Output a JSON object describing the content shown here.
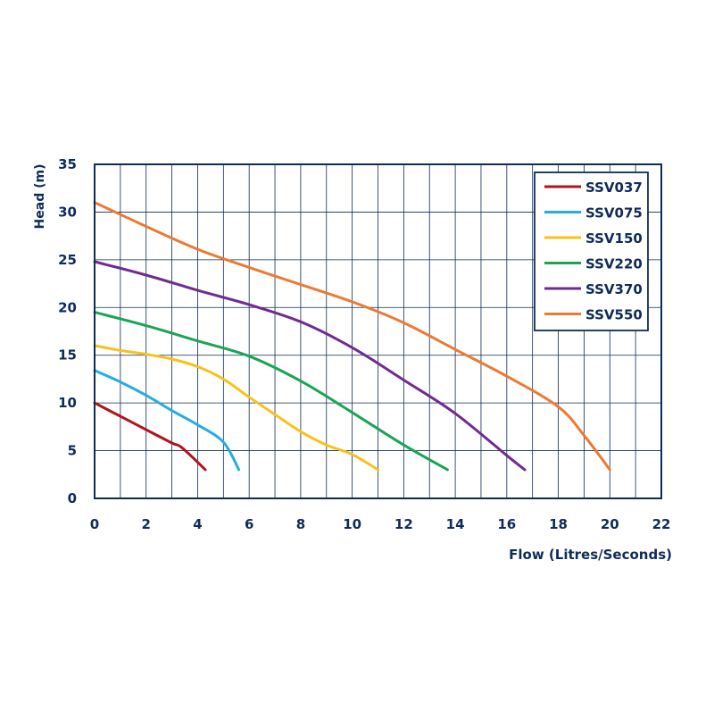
{
  "chart_data": {
    "type": "line",
    "title": "",
    "xlabel": "Flow (Litres/Seconds)",
    "ylabel": "Head (m)",
    "xlim": [
      0,
      22
    ],
    "ylim": [
      0,
      35
    ],
    "xticks": [
      0,
      2,
      4,
      6,
      8,
      10,
      12,
      14,
      16,
      18,
      20,
      22
    ],
    "yticks": [
      0,
      5,
      10,
      15,
      20,
      25,
      30,
      35
    ],
    "x_grid_step": 1,
    "y_grid_step": 5,
    "grid": true,
    "legend_position": "top-right",
    "series": [
      {
        "name": "SSV037",
        "color": "#b0141c",
        "points": [
          [
            0,
            10
          ],
          [
            1,
            8.6
          ],
          [
            2,
            7.2
          ],
          [
            3,
            5.8
          ],
          [
            3.4,
            5.3
          ],
          [
            4.3,
            3
          ]
        ]
      },
      {
        "name": "SSV075",
        "color": "#22aee4",
        "points": [
          [
            0,
            13.4
          ],
          [
            1,
            12.2
          ],
          [
            2,
            10.8
          ],
          [
            3,
            9.2
          ],
          [
            4,
            7.7
          ],
          [
            5,
            5.9
          ],
          [
            5.6,
            3
          ]
        ]
      },
      {
        "name": "SSV150",
        "color": "#f7c21a",
        "points": [
          [
            0,
            16
          ],
          [
            1,
            15.5
          ],
          [
            2,
            15.1
          ],
          [
            3,
            14.6
          ],
          [
            4,
            13.8
          ],
          [
            5,
            12.5
          ],
          [
            6,
            10.6
          ],
          [
            7,
            8.8
          ],
          [
            8,
            7
          ],
          [
            9,
            5.6
          ],
          [
            10,
            4.6
          ],
          [
            11,
            3
          ]
        ]
      },
      {
        "name": "SSV220",
        "color": "#1ca455",
        "points": [
          [
            0,
            19.5
          ],
          [
            2,
            18.1
          ],
          [
            4,
            16.5
          ],
          [
            6,
            14.9
          ],
          [
            8,
            12.3
          ],
          [
            10,
            9
          ],
          [
            12,
            5.6
          ],
          [
            13.7,
            3
          ]
        ]
      },
      {
        "name": "SSV370",
        "color": "#6e2c91",
        "points": [
          [
            0,
            24.8
          ],
          [
            2,
            23.4
          ],
          [
            4,
            21.8
          ],
          [
            6,
            20.3
          ],
          [
            8,
            18.5
          ],
          [
            10,
            15.8
          ],
          [
            12,
            12.4
          ],
          [
            14,
            8.9
          ],
          [
            16,
            4.5
          ],
          [
            16.7,
            3
          ]
        ]
      },
      {
        "name": "SSV550",
        "color": "#eb7a33",
        "points": [
          [
            0,
            31
          ],
          [
            2,
            28.5
          ],
          [
            4,
            26.1
          ],
          [
            6,
            24.2
          ],
          [
            8,
            22.4
          ],
          [
            10,
            20.6
          ],
          [
            12,
            18.4
          ],
          [
            14,
            15.6
          ],
          [
            16,
            12.8
          ],
          [
            18,
            9.6
          ],
          [
            19,
            6.6
          ],
          [
            20,
            3
          ]
        ]
      }
    ],
    "colors": {
      "axis": "#0f2b5a",
      "grid": "#0f2b5a",
      "text": "#0f2b5a"
    }
  }
}
